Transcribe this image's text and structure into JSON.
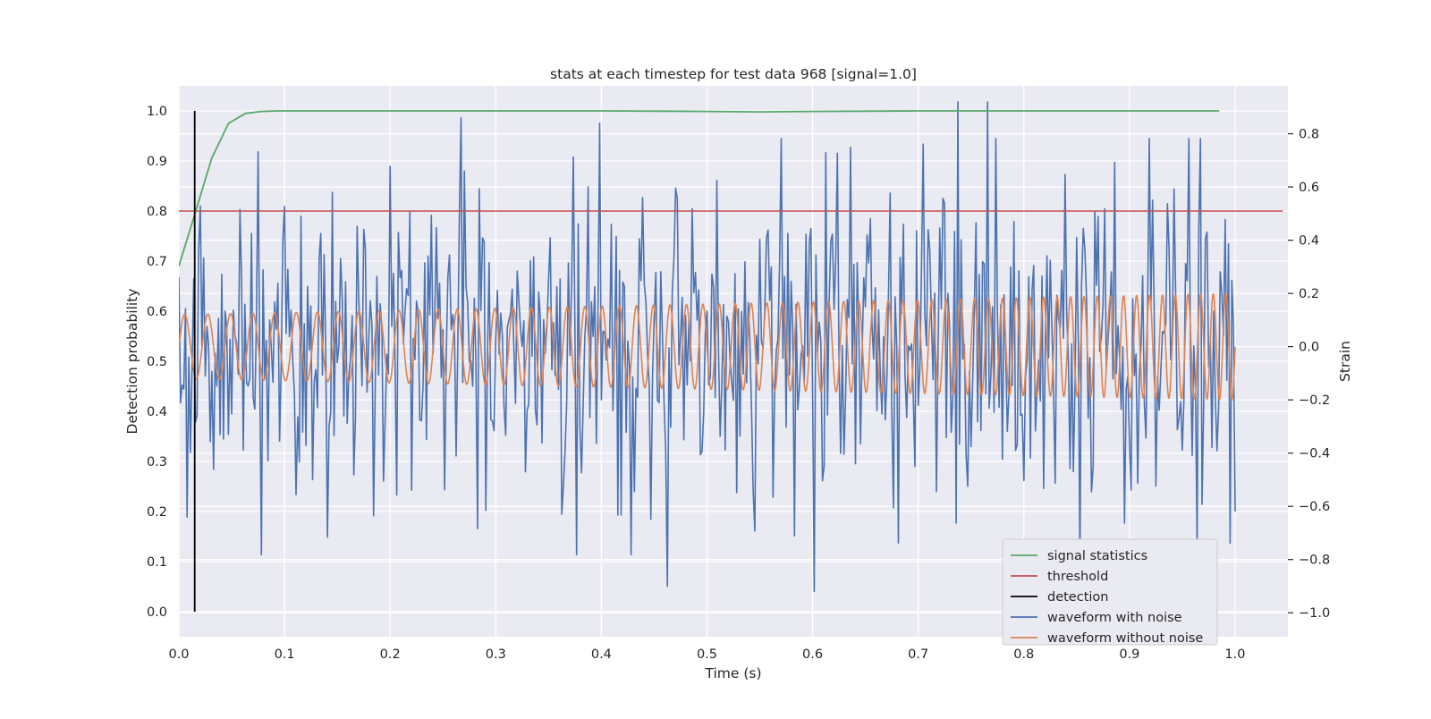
{
  "chart_data": {
    "type": "line",
    "title": "stats at each timestep for test data 968 [signal=1.0]",
    "xlabel": "Time (s)",
    "ylabel": "Detection probability",
    "y2label": "Strain",
    "xlim": [
      0.0,
      1.05
    ],
    "ylim": [
      -0.05,
      1.05
    ],
    "y2lim": [
      -1.09,
      0.98
    ],
    "xticks": [
      "0.0",
      "0.1",
      "0.2",
      "0.3",
      "0.4",
      "0.5",
      "0.6",
      "0.7",
      "0.8",
      "0.9",
      "1.0"
    ],
    "yticks": [
      "0.0",
      "0.1",
      "0.2",
      "0.3",
      "0.4",
      "0.5",
      "0.6",
      "0.7",
      "0.8",
      "0.9",
      "1.0"
    ],
    "y2ticks": [
      "−1.0",
      "−0.8",
      "−0.6",
      "−0.4",
      "−0.2",
      "0.0",
      "0.2",
      "0.4",
      "0.6",
      "0.8"
    ],
    "grid": true,
    "legend_position": "lower-right",
    "colors": {
      "signal_statistics": "#55a868",
      "threshold": "#c44e52",
      "detection": "#000000",
      "waveform_with_noise": "#4c72b0",
      "waveform_without_noise": "#dd8452",
      "background": "#eaeaf2",
      "grid": "#ffffff"
    },
    "series": [
      {
        "name": "signal statistics",
        "axis": "left",
        "x": [
          0.0,
          0.016,
          0.031,
          0.047,
          0.063,
          0.078,
          0.094,
          0.2,
          0.4,
          0.5,
          0.55,
          0.6,
          0.7,
          0.8,
          0.9,
          0.985
        ],
        "y": [
          0.69,
          0.8,
          0.905,
          0.975,
          0.995,
          0.999,
          1.0,
          1.0,
          1.0,
          0.999,
          0.998,
          0.999,
          1.0,
          1.0,
          1.0,
          1.0
        ]
      },
      {
        "name": "threshold",
        "axis": "left",
        "x": [
          0.0,
          1.045
        ],
        "y": [
          0.8,
          0.8
        ]
      },
      {
        "name": "detection",
        "axis": "left",
        "x": [
          0.015,
          0.015
        ],
        "y": [
          0.0,
          1.0
        ]
      },
      {
        "name": "waveform with noise",
        "axis": "right",
        "x_range": [
          0.0,
          1.0
        ],
        "points": 640,
        "y_range": [
          -0.92,
          0.92
        ],
        "peaks": [
          {
            "x": 0.267,
            "y": 0.86
          },
          {
            "x": 0.398,
            "y": 0.84
          },
          {
            "x": 0.738,
            "y": 0.92
          },
          {
            "x": 0.765,
            "y": 0.92
          },
          {
            "x": 0.462,
            "y": -0.9
          },
          {
            "x": 0.601,
            "y": -0.92
          },
          {
            "x": 0.853,
            "y": -0.82
          }
        ]
      },
      {
        "name": "waveform without noise",
        "axis": "right",
        "x_range": [
          0.0,
          1.0
        ],
        "form": "chirp",
        "frequency_hz": [
          45,
          85
        ],
        "amplitude": [
          0.12,
          0.2
        ]
      }
    ],
    "legend": [
      "signal statistics",
      "threshold",
      "detection",
      "waveform with noise",
      "waveform without noise"
    ]
  }
}
